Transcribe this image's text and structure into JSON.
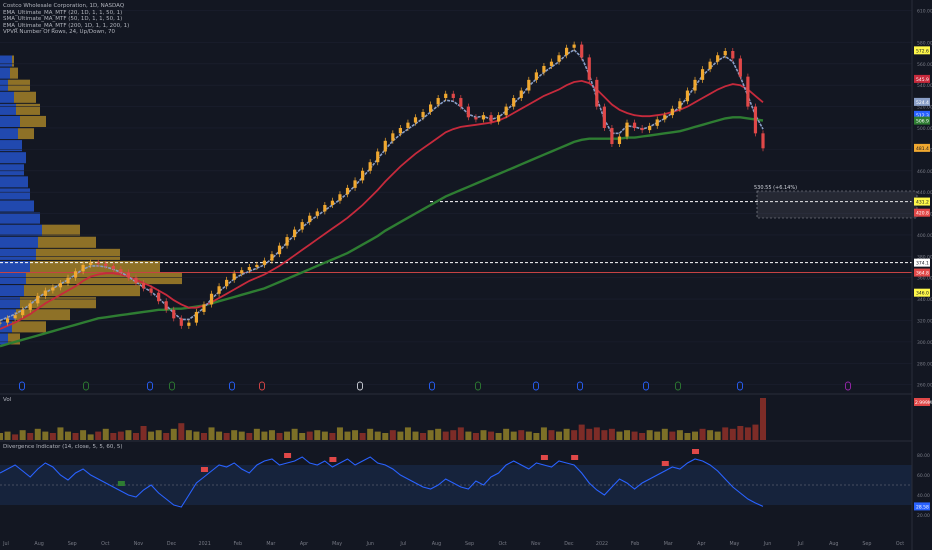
{
  "legend": {
    "symbol_line": "Costco Wholesale Corporation, 1D, NASDAQ",
    "ma_lines": [
      "EMA_Ultimate_MA_MTF (20, 1D, 1, 1, 50, 1)",
      "SMA_Ultimate_MA_MTF (50, 1D, 1, 1, 50, 1)",
      "EMA_Ultimate_MA_MTF (200, 1D, 1, 1, 200, 1)",
      "VPVR Number Of Rows, 24, Up/Down, 70"
    ],
    "volume_label": "Vol",
    "rsi_label": "Divergence Indicator (14, close, 5, 5, 60, 5)"
  },
  "colors": {
    "background": "#131722",
    "candle_up": "#f0a830",
    "candle_down": "#e04848",
    "ema20": "#8a9fc8",
    "sma50": "#c62a3c",
    "ema200": "#2e7d32",
    "volume_up": "#8a7a28",
    "volume_down": "#8a2f28",
    "rsi_line": "#2962ff",
    "vp_up": "#2452c8",
    "vp_down": "#b8902a",
    "accent_yellow": "#fff84a"
  },
  "chart_data": {
    "type": "line",
    "x_labels": [
      "Jul",
      "Aug",
      "Sep",
      "Oct",
      "Nov",
      "Dec",
      "2021",
      "Feb",
      "Mar",
      "Apr",
      "May",
      "Jun",
      "Jul",
      "Aug",
      "Sep",
      "Oct",
      "Nov",
      "Dec",
      "2022",
      "Feb",
      "Mar",
      "Apr",
      "May",
      "Jun",
      "Jul",
      "Aug",
      "Sep",
      "Oct"
    ],
    "price_axis_ticks": [
      "610.00",
      "580.00",
      "560.00",
      "540.00",
      "520.00",
      "500.00",
      "480.00",
      "460.00",
      "440.00",
      "420.00",
      "400.00",
      "380.00",
      "360.00",
      "340.00",
      "320.00",
      "300.00",
      "280.00",
      "260.00"
    ],
    "price_axis_badges": [
      {
        "value": "572.6",
        "color": "#fff84a",
        "text_color": "#131722"
      },
      {
        "value": "545.9",
        "color": "#c62a3c",
        "text_color": "#ffffff"
      },
      {
        "value": "524.4",
        "color": "#8a9fc8",
        "text_color": "#ffffff"
      },
      {
        "value": "512.3",
        "color": "#2962ff",
        "text_color": "#ffffff"
      },
      {
        "value": "506.9",
        "color": "#2e7d32",
        "text_color": "#ffffff"
      },
      {
        "value": "481.4",
        "color": "#f0a830",
        "text_color": "#131722"
      },
      {
        "value": "431.2",
        "color": "#fff84a",
        "text_color": "#131722"
      },
      {
        "value": "420.8",
        "color": "#e04848",
        "text_color": "#ffffff"
      },
      {
        "value": "374.1",
        "color": "#ffffff",
        "text_color": "#131722"
      },
      {
        "value": "364.8",
        "color": "#e04848",
        "text_color": "#ffffff"
      },
      {
        "value": "346.0",
        "color": "#fff84a",
        "text_color": "#131722"
      }
    ],
    "vol_badge": "2.999M",
    "rsi_axis_ticks": [
      "80.00",
      "60.00",
      "40.00",
      "20.00"
    ],
    "rsi_badge": "28.58",
    "box_label": "530.55 (+6.14%)",
    "horizontal_levels": [
      {
        "price": 431.2,
        "style": "dashed",
        "color": "#ffffff"
      },
      {
        "price": 374.1,
        "style": "dashed",
        "color": "#ffffff"
      },
      {
        "price": 364.8,
        "style": "solid",
        "color": "#e04848"
      }
    ],
    "price_series": [
      318,
      322,
      325,
      330,
      336,
      343,
      348,
      351,
      355,
      360,
      366,
      372,
      374,
      373,
      371,
      368,
      365,
      360,
      355,
      350,
      346,
      338,
      330,
      322,
      315,
      318,
      328,
      335,
      345,
      352,
      358,
      364,
      367,
      370,
      372,
      376,
      382,
      390,
      398,
      405,
      412,
      418,
      422,
      428,
      432,
      438,
      444,
      451,
      460,
      468,
      478,
      488,
      495,
      500,
      505,
      510,
      515,
      522,
      528,
      532,
      528,
      520,
      510,
      508,
      512,
      506,
      512,
      520,
      528,
      535,
      545,
      552,
      558,
      562,
      568,
      575,
      578,
      566,
      545,
      520,
      500,
      485,
      492,
      505,
      500,
      498,
      502,
      508,
      512,
      518,
      525,
      535,
      545,
      555,
      562,
      568,
      572,
      565,
      548,
      520,
      495,
      481
    ],
    "ema20_series": [
      320,
      323,
      326,
      330,
      335,
      341,
      346,
      350,
      354,
      358,
      363,
      368,
      371,
      371,
      370,
      368,
      365,
      361,
      356,
      351,
      347,
      341,
      334,
      327,
      321,
      321,
      326,
      332,
      340,
      347,
      353,
      359,
      363,
      366,
      369,
      372,
      378,
      385,
      393,
      400,
      407,
      413,
      418,
      423,
      428,
      433,
      439,
      446,
      454,
      462,
      471,
      480,
      488,
      494,
      499,
      504,
      509,
      515,
      521,
      526,
      525,
      520,
      513,
      510,
      511,
      508,
      510,
      516,
      523,
      530,
      539,
      546,
      552,
      557,
      562,
      569,
      573,
      566,
      550,
      528,
      508,
      495,
      495,
      502,
      501,
      499,
      501,
      505,
      509,
      514,
      520,
      529,
      539,
      549,
      556,
      563,
      567,
      562,
      548,
      530,
      512,
      499
    ],
    "sma50_series": [
      312,
      315,
      318,
      322,
      326,
      331,
      336,
      340,
      344,
      348,
      352,
      357,
      361,
      363,
      364,
      364,
      363,
      361,
      358,
      355,
      352,
      348,
      344,
      339,
      335,
      332,
      332,
      334,
      337,
      341,
      345,
      349,
      353,
      357,
      360,
      363,
      367,
      371,
      376,
      381,
      386,
      391,
      396,
      401,
      406,
      411,
      416,
      422,
      428,
      435,
      442,
      450,
      457,
      464,
      470,
      476,
      481,
      486,
      491,
      496,
      499,
      501,
      502,
      503,
      504,
      505,
      507,
      510,
      514,
      518,
      522,
      526,
      530,
      533,
      536,
      540,
      543,
      544,
      542,
      536,
      529,
      522,
      517,
      514,
      512,
      511,
      511,
      512,
      513,
      515,
      517,
      520,
      524,
      528,
      532,
      536,
      539,
      541,
      540,
      536,
      530,
      524
    ],
    "ema200_series": [
      296,
      298,
      300,
      302,
      304,
      306,
      308,
      310,
      312,
      314,
      316,
      318,
      320,
      322,
      323,
      324,
      325,
      326,
      327,
      328,
      329,
      330,
      330,
      331,
      331,
      332,
      333,
      334,
      336,
      338,
      340,
      342,
      344,
      346,
      348,
      350,
      353,
      356,
      359,
      362,
      365,
      368,
      371,
      374,
      377,
      380,
      383,
      387,
      391,
      395,
      399,
      404,
      408,
      412,
      416,
      420,
      424,
      428,
      432,
      436,
      439,
      442,
      445,
      448,
      451,
      454,
      457,
      460,
      463,
      466,
      469,
      472,
      475,
      478,
      481,
      484,
      487,
      489,
      490,
      490,
      490,
      490,
      490,
      491,
      491,
      492,
      493,
      494,
      495,
      496,
      497,
      499,
      501,
      503,
      505,
      507,
      509,
      510,
      510,
      509,
      508,
      507
    ],
    "volume_series": [
      0.5,
      0.6,
      0.4,
      0.7,
      0.5,
      0.8,
      0.6,
      0.5,
      0.9,
      0.6,
      0.5,
      0.7,
      0.4,
      0.6,
      0.8,
      0.5,
      0.6,
      0.7,
      0.5,
      1.0,
      0.6,
      0.7,
      0.5,
      0.8,
      1.2,
      0.7,
      0.6,
      0.5,
      0.9,
      0.6,
      0.5,
      0.7,
      0.6,
      0.5,
      0.8,
      0.6,
      0.7,
      0.5,
      0.6,
      0.8,
      0.5,
      0.6,
      0.7,
      0.6,
      0.5,
      0.9,
      0.6,
      0.7,
      0.5,
      0.8,
      0.6,
      0.5,
      0.7,
      0.6,
      0.9,
      0.6,
      0.5,
      0.7,
      0.8,
      0.6,
      0.7,
      0.9,
      0.6,
      0.5,
      0.7,
      0.6,
      0.5,
      0.8,
      0.6,
      0.7,
      0.6,
      0.5,
      0.9,
      0.7,
      0.6,
      0.8,
      0.7,
      1.1,
      0.8,
      0.9,
      0.7,
      0.8,
      0.6,
      0.7,
      0.6,
      0.5,
      0.7,
      0.6,
      0.8,
      0.6,
      0.7,
      0.5,
      0.6,
      0.8,
      0.7,
      0.6,
      0.9,
      0.8,
      1.0,
      0.9,
      1.1,
      3.0
    ],
    "volume_up_flags": [
      1,
      1,
      0,
      1,
      0,
      1,
      1,
      0,
      1,
      1,
      0,
      1,
      1,
      0,
      1,
      0,
      0,
      1,
      0,
      0,
      1,
      1,
      0,
      1,
      0,
      1,
      1,
      0,
      1,
      1,
      0,
      1,
      1,
      0,
      1,
      1,
      1,
      0,
      1,
      1,
      1,
      0,
      1,
      1,
      0,
      1,
      1,
      1,
      0,
      1,
      1,
      1,
      0,
      1,
      1,
      1,
      0,
      1,
      1,
      0,
      0,
      0,
      1,
      0,
      1,
      0,
      1,
      1,
      1,
      0,
      1,
      1,
      1,
      0,
      1,
      1,
      0,
      0,
      0,
      0,
      0,
      0,
      1,
      1,
      0,
      0,
      1,
      1,
      1,
      0,
      1,
      1,
      1,
      0,
      1,
      1,
      0,
      0,
      0,
      0,
      0,
      0
    ],
    "rsi_series": [
      62,
      66,
      70,
      64,
      58,
      66,
      72,
      68,
      60,
      55,
      62,
      66,
      60,
      56,
      52,
      48,
      44,
      40,
      38,
      45,
      50,
      42,
      36,
      30,
      28,
      40,
      52,
      58,
      64,
      70,
      68,
      72,
      66,
      62,
      70,
      74,
      76,
      70,
      72,
      74,
      78,
      72,
      70,
      74,
      68,
      72,
      76,
      70,
      74,
      78,
      72,
      70,
      66,
      60,
      56,
      52,
      48,
      46,
      50,
      56,
      52,
      48,
      46,
      54,
      50,
      58,
      62,
      70,
      74,
      70,
      66,
      72,
      70,
      68,
      74,
      72,
      70,
      62,
      52,
      45,
      40,
      48,
      56,
      52,
      46,
      52,
      56,
      60,
      64,
      68,
      66,
      72,
      76,
      74,
      70,
      64,
      56,
      48,
      42,
      36,
      32,
      28.58
    ],
    "divergence_tags_count": 8
  }
}
